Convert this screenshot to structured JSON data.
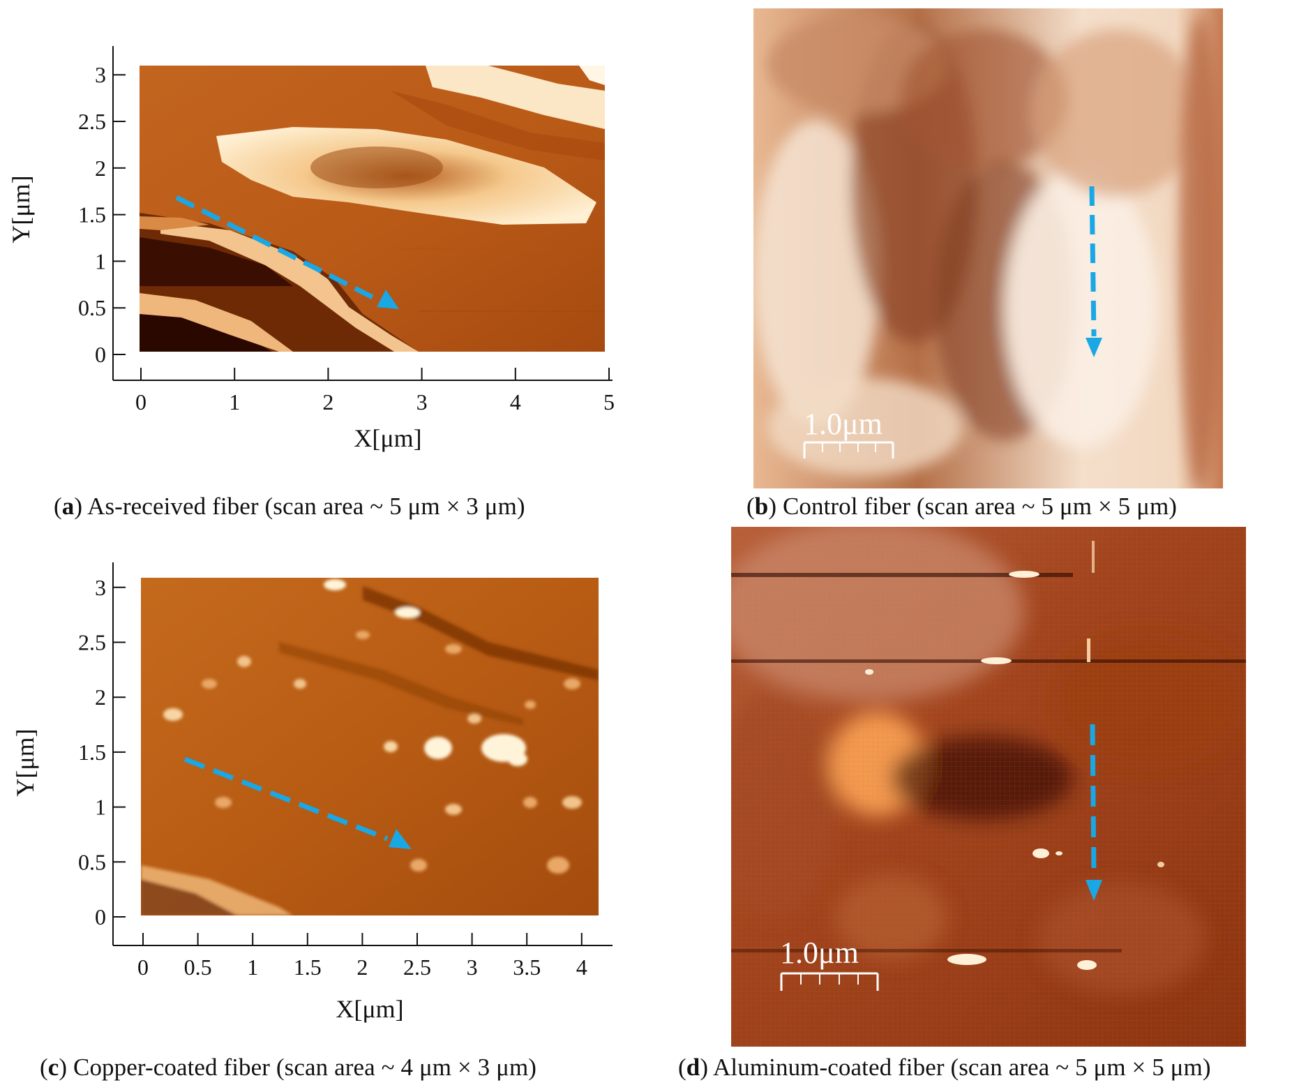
{
  "figure": {
    "panels": [
      {
        "id": "a",
        "caption_label": "a",
        "caption_text": "As-received fiber (scan area ~ 5 μm × 3 μm)",
        "x_axis_label": "X[μm]",
        "y_axis_label": "Y[μm]",
        "x_ticks": [
          "0",
          "1",
          "2",
          "3",
          "4",
          "5"
        ],
        "y_ticks": [
          "0",
          "0.5",
          "1",
          "1.5",
          "2",
          "2.5",
          "3"
        ]
      },
      {
        "id": "b",
        "caption_label": "b",
        "caption_text": "Control fiber (scan area ~ 5 μm × 5 μm)",
        "scale_bar": "1.0μm"
      },
      {
        "id": "c",
        "caption_label": "c",
        "caption_text": "Copper-coated fiber (scan area ~ 4 μm × 3 μm)",
        "x_axis_label": "X[μm]",
        "y_axis_label": "Y[μm]",
        "x_ticks": [
          "0",
          "0.5",
          "1",
          "1.5",
          "2",
          "2.5",
          "3",
          "3.5",
          "4"
        ],
        "y_ticks": [
          "0",
          "0.5",
          "1",
          "1.5",
          "2",
          "2.5",
          "3"
        ]
      },
      {
        "id": "d",
        "caption_label": "d",
        "caption_text": "Aluminum-coated fiber (scan area ~ 5 μm × 5 μm)",
        "scale_bar": "1.0μm"
      }
    ],
    "colors": {
      "arrow": "#1aa7e6",
      "afm_dark": "#3a0e00",
      "afm_mid": "#c2651f",
      "afm_light": "#ffe3b8"
    }
  }
}
